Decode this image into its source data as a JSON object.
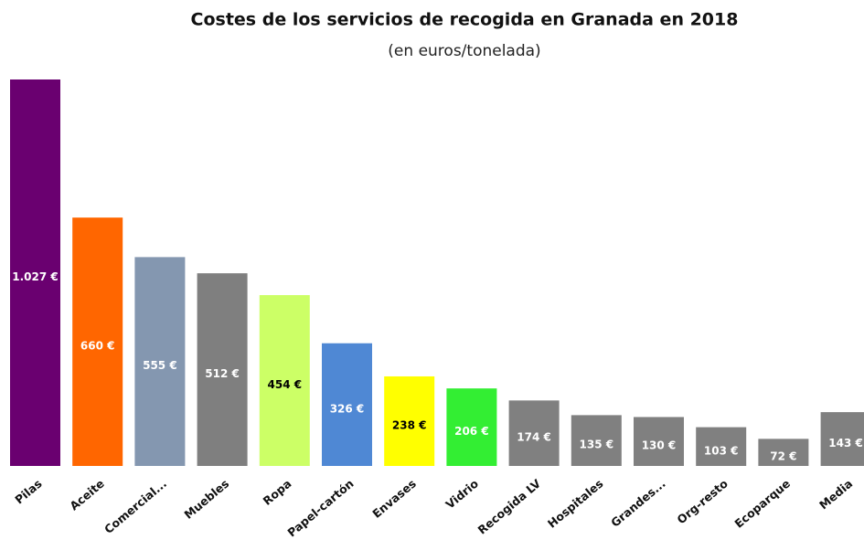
{
  "chart_data": {
    "type": "bar",
    "title": "Costes de los servicios de recogida en Granada en 2018",
    "subtitle": "(en euros/tonelada)",
    "categories": [
      "Pilas",
      "Aceite",
      "Comercial...",
      "Muebles",
      "Ropa",
      "Papel-cartón",
      "Envases",
      "Vidrio",
      "Recogida LV",
      "Hospitales",
      "Grandes...",
      "Org-resto",
      "Ecoparque",
      "Media"
    ],
    "values": [
      1027,
      660,
      555,
      512,
      454,
      326,
      238,
      206,
      174,
      135,
      130,
      103,
      72,
      143
    ],
    "value_labels": [
      "1.027 €",
      "660 €",
      "555 €",
      "512 €",
      "454 €",
      "326 €",
      "238 €",
      "206 €",
      "174 €",
      "135 €",
      "130 €",
      "103 €",
      "72 €",
      "143 €"
    ],
    "colors": [
      "#6a0070",
      "#ff6600",
      "#8497b0",
      "#7f7f7f",
      "#ccff66",
      "#4f88d4",
      "#ffff00",
      "#33ee33",
      "#808080",
      "#808080",
      "#808080",
      "#808080",
      "#808080",
      "#808080"
    ],
    "label_colors": [
      "#ffffff",
      "#ffffff",
      "#ffffff",
      "#ffffff",
      "#000000",
      "#ffffff",
      "#000000",
      "#ffffff",
      "#ffffff",
      "#ffffff",
      "#ffffff",
      "#ffffff",
      "#ffffff",
      "#ffffff"
    ]
  }
}
